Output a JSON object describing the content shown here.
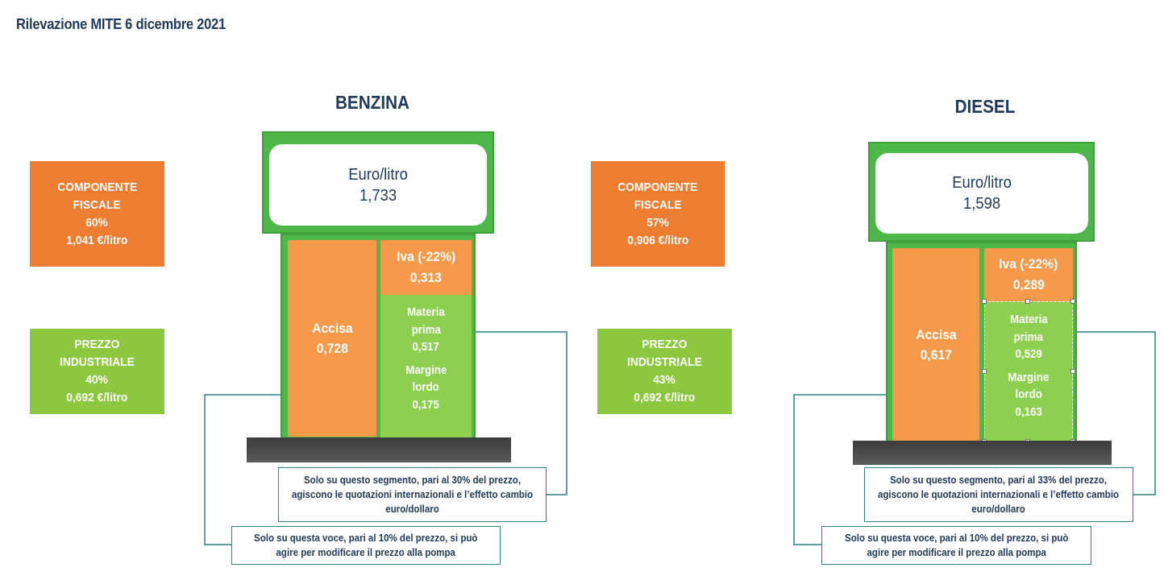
{
  "title": "Rilevazione MITE 6 dicembre 2021",
  "benzina": {
    "name": "BENZINA",
    "head_unit": "Euro/litro",
    "head_price": "1,733",
    "fiscale": {
      "label1": "COMPONENTE",
      "label2": "FISCALE",
      "pct": "60%",
      "value": "1,041 €/litro"
    },
    "industriale": {
      "label1": "PREZZO",
      "label2": "INDUSTRIALE",
      "pct": "40%",
      "value": "0,692 €/litro"
    },
    "accisa": {
      "label": "Accisa",
      "value": "0,728"
    },
    "iva": {
      "label": "Iva (-22%)",
      "value": "0,313"
    },
    "materia": {
      "label1": "Materia",
      "label2": "prima",
      "value": "0,517"
    },
    "margine": {
      "label1": "Margine",
      "label2": "lordo",
      "value": "0,175"
    },
    "note_segment": {
      "line1": "Solo su questo segmento, pari al 30% del prezzo,",
      "line2": "agiscono le quotazioni internazionali e l’effetto cambio",
      "line3": "euro/dollaro"
    },
    "note_voce": {
      "line1": "Solo su questa voce, pari al 10% del prezzo, si può",
      "line2": "agire per modificare il prezzo alla pompa"
    }
  },
  "diesel": {
    "name": "DIESEL",
    "head_unit": "Euro/litro",
    "head_price": "1,598",
    "fiscale": {
      "label1": "COMPONENTE",
      "label2": "FISCALE",
      "pct": "57%",
      "value": "0,906 €/litro"
    },
    "industriale": {
      "label1": "PREZZO",
      "label2": "INDUSTRIALE",
      "pct": "43%",
      "value": "0,692 €/litro"
    },
    "accisa": {
      "label": "Accisa",
      "value": "0,617"
    },
    "iva": {
      "label": "Iva (-22%)",
      "value": "0,289"
    },
    "materia": {
      "label1": "Materia",
      "label2": "prima",
      "value": "0,529"
    },
    "margine": {
      "label1": "Margine",
      "label2": "lordo",
      "value": "0,163"
    },
    "note_segment": {
      "line1": "Solo su questo segmento, pari al 33% del prezzo,",
      "line2": "agiscono le quotazioni internazionali e l’effetto cambio",
      "line3": "euro/dollaro"
    },
    "note_voce": {
      "line1": "Solo su questa voce, pari al 10% del prezzo, si può",
      "line2": "agire per modificare il prezzo alla pompa"
    }
  },
  "colors": {
    "orange": "#ed7d31",
    "light_orange": "#f5994b",
    "green": "#8dc63f",
    "pump_green": "#4db848",
    "navy": "#1f3a5a",
    "connector": "#2e7f86"
  }
}
